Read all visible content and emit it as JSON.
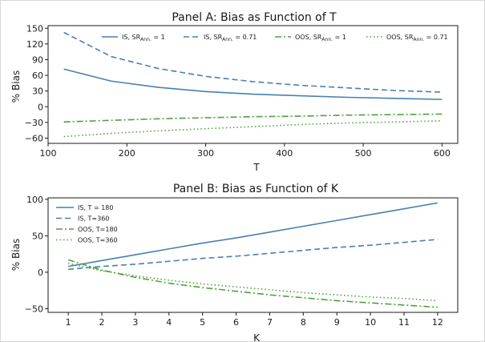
{
  "chart_data": [
    {
      "panel": "A",
      "type": "line",
      "title": "Panel A: Bias as Function of T",
      "xlabel": "T",
      "ylabel": "% Bias",
      "xlim": [
        100,
        620
      ],
      "ylim": [
        -70,
        155
      ],
      "xticks": [
        100,
        200,
        300,
        400,
        500,
        600
      ],
      "yticks": [
        -60,
        -30,
        0,
        30,
        60,
        90,
        120,
        150
      ],
      "legend_position": "top",
      "x": [
        120,
        180,
        240,
        300,
        360,
        420,
        480,
        540,
        600
      ],
      "series": [
        {
          "name": "IS, SR_Ann. = 1",
          "label_main": "IS, SR",
          "label_sub": "Ann.",
          "label_tail": " = 1",
          "color": "#4a7fb0",
          "style": "solid",
          "values": [
            72,
            49,
            37,
            29,
            24,
            21,
            18,
            16,
            14
          ]
        },
        {
          "name": "IS, SR_Ann. = 0.71",
          "label_main": "IS, SR",
          "label_sub": "Ann.",
          "label_tail": " = 0.71",
          "color": "#4a7fb0",
          "style": "dashed",
          "values": [
            142,
            96,
            73,
            58,
            48,
            41,
            36,
            31,
            28
          ]
        },
        {
          "name": "OOS, SR_Ann. = 1",
          "label_main": "OOS, SR",
          "label_sub": "Ann.",
          "label_tail": " = 1",
          "color": "#4ea03f",
          "style": "dashdot",
          "values": [
            -29,
            -26,
            -23,
            -21,
            -19,
            -18,
            -16,
            -15,
            -14
          ]
        },
        {
          "name": "OOS, SR_Ann. = 0.71",
          "label_main": "OOS, SR",
          "label_sub": "Ann.",
          "label_tail": " = 0.71",
          "color": "#4ea03f",
          "style": "dotted",
          "values": [
            -57,
            -51,
            -46,
            -42,
            -38,
            -34,
            -31,
            -29,
            -27
          ]
        }
      ]
    },
    {
      "panel": "B",
      "type": "line",
      "title": "Panel B: Bias as Function of K",
      "xlabel": "K",
      "ylabel": "% Bias",
      "xlim": [
        0.4,
        12.6
      ],
      "ylim": [
        -55,
        102
      ],
      "xticks": [
        1,
        2,
        3,
        4,
        5,
        6,
        7,
        8,
        9,
        10,
        11,
        12
      ],
      "yticks": [
        -50,
        0,
        50,
        100
      ],
      "legend_position": "top-left",
      "x": [
        1,
        2,
        3,
        4,
        5,
        6,
        7,
        8,
        9,
        10,
        11,
        12
      ],
      "series": [
        {
          "name": "IS, T = 180",
          "color": "#4a7fb0",
          "style": "solid",
          "values": [
            8,
            16,
            24,
            32,
            40,
            47,
            55,
            63,
            71,
            79,
            87,
            95
          ]
        },
        {
          "name": "IS, T=360",
          "color": "#4a7fb0",
          "style": "dashed",
          "values": [
            4,
            8,
            11,
            15,
            19,
            22,
            26,
            30,
            34,
            37,
            41,
            45
          ]
        },
        {
          "name": "OOS, T=180",
          "color": "#4ea03f",
          "style": "dashdot",
          "values": [
            17,
            3,
            -7,
            -15,
            -21,
            -26,
            -31,
            -35,
            -39,
            -42,
            -45,
            -48
          ]
        },
        {
          "name": "OOS, T=360",
          "color": "#4ea03f",
          "style": "dotted",
          "values": [
            12,
            2,
            -5,
            -11,
            -16,
            -20,
            -24,
            -28,
            -31,
            -34,
            -36,
            -39
          ]
        }
      ]
    }
  ]
}
